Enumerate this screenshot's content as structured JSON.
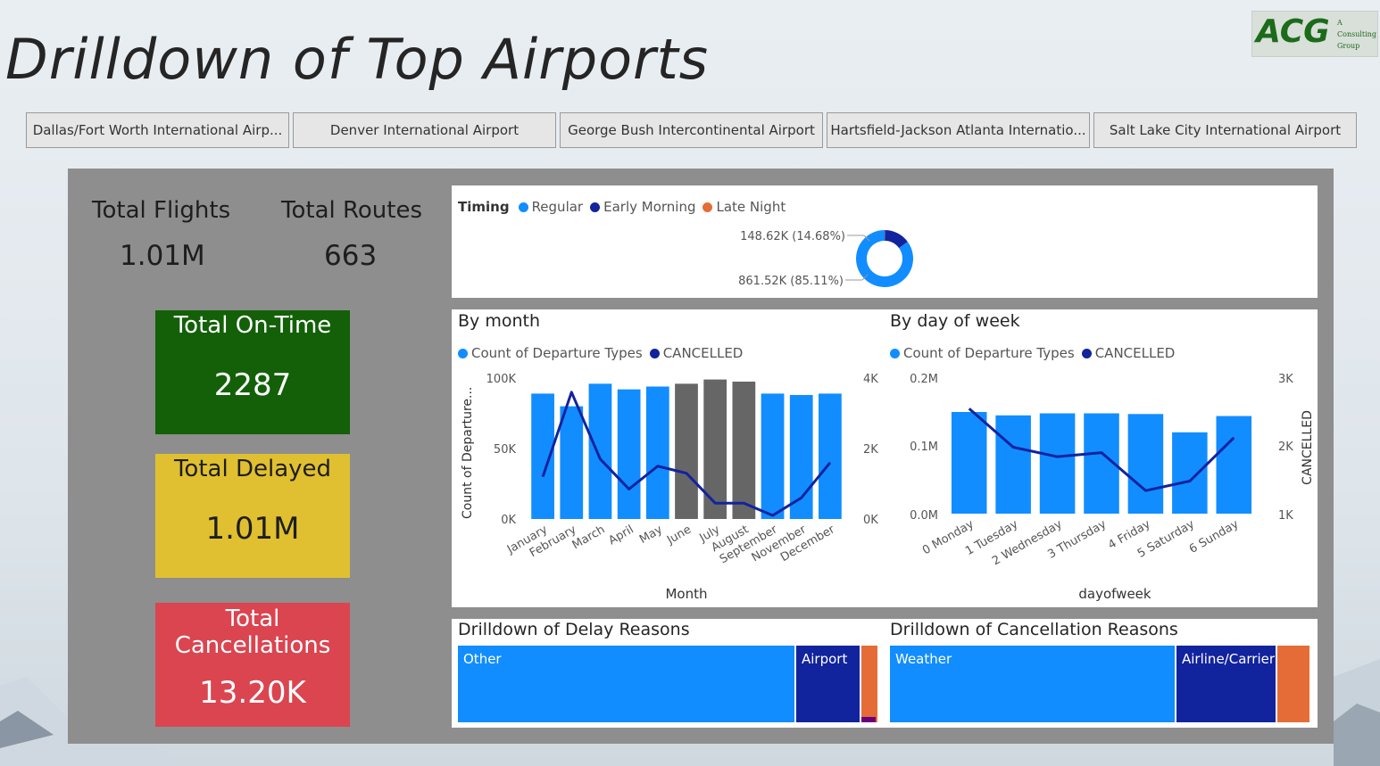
{
  "page": {
    "title": "Drilldown of Top Airports"
  },
  "logo": {
    "mark": "ACG",
    "sub_line1": "A",
    "sub_line2": "Consulting",
    "sub_line3": "Group"
  },
  "slicers": [
    "Dallas/Fort Worth International Airp...",
    "Denver International Airport",
    "George Bush Intercontinental Airport",
    "Hartsfield-Jackson Atlanta Internatio...",
    "Salt Lake City International Airport"
  ],
  "kpis": {
    "total_flights_label": "Total Flights",
    "total_flights_value": "1.01M",
    "total_routes_label": "Total Routes",
    "total_routes_value": "663"
  },
  "cards": {
    "ontime_label": "Total On-Time",
    "ontime_value": "2287",
    "ontime_color": "#136008",
    "delayed_label": "Total Delayed",
    "delayed_value": "1.01M",
    "delayed_color": "#e0c030",
    "cancel_label_1": "Total",
    "cancel_label_2": "Cancellations",
    "cancel_value": "13.20K",
    "cancel_color": "#da4550"
  },
  "colors": {
    "regular": "#118DFF",
    "early": "#12239E",
    "late": "#E66C37",
    "grey_bar": "#666666",
    "line": "#12239E"
  },
  "timing_chart": {
    "legend_title": "Timing",
    "legend": [
      "Regular",
      "Early Morning",
      "Late Night"
    ],
    "label_small": "148.62K (14.68%)",
    "label_large": "861.52K (85.11%)"
  },
  "month_chart": {
    "title": "By month",
    "legend": [
      "Count of Departure Types",
      "CANCELLED"
    ],
    "xlabel": "Month",
    "ylabel_left": "Count of Departure...",
    "left_ticks": [
      "100K",
      "50K",
      "0K"
    ],
    "right_ticks": [
      "4K",
      "2K",
      "0K"
    ]
  },
  "dow_chart": {
    "title": "By day of week",
    "legend": [
      "Count of Departure Types",
      "CANCELLED"
    ],
    "xlabel": "dayofweek",
    "ylabel_right": "CANCELLED",
    "left_ticks": [
      "0.2M",
      "0.1M",
      "0.0M"
    ],
    "right_ticks": [
      "3K",
      "2K",
      "1K"
    ]
  },
  "delay_reasons": {
    "title": "Drilldown of Delay Reasons",
    "labels": [
      "Other",
      "Airport"
    ]
  },
  "cancel_reasons": {
    "title": "Drilldown of Cancellation Reasons",
    "labels": [
      "Weather",
      "Airline/Carrier"
    ]
  },
  "chart_data": [
    {
      "type": "pie",
      "title": "Timing",
      "slices": [
        {
          "name": "Regular",
          "value": 861520,
          "percent": 85.11
        },
        {
          "name": "Early Morning",
          "value": 148620,
          "percent": 14.68
        },
        {
          "name": "Late Night",
          "value": 2130,
          "percent": 0.21
        }
      ]
    },
    {
      "type": "bar",
      "title": "By month",
      "categories": [
        "January",
        "February",
        "March",
        "April",
        "May",
        "June",
        "July",
        "August",
        "September",
        "November",
        "December"
      ],
      "highlighted": [
        true,
        true,
        true,
        true,
        true,
        false,
        false,
        false,
        true,
        true,
        true
      ],
      "series": [
        {
          "name": "Count of Departure Types",
          "axis": "left",
          "values": [
            89000,
            80000,
            96000,
            92000,
            94000,
            96000,
            99000,
            97500,
            89000,
            88000,
            89000
          ]
        },
        {
          "name": "CANCELLED",
          "axis": "right",
          "values": [
            1200,
            3600,
            1700,
            850,
            1500,
            1300,
            450,
            450,
            100,
            600,
            1600
          ]
        }
      ],
      "xlabel": "Month",
      "ylabel": "Count of Departure...",
      "ylim": [
        0,
        100000
      ],
      "y2lim": [
        0,
        4000
      ]
    },
    {
      "type": "bar",
      "title": "By day of week",
      "categories": [
        "0 Monday",
        "1 Tuesday",
        "2 Wednesday",
        "3 Thursday",
        "4 Friday",
        "5 Saturday",
        "6 Sunday"
      ],
      "series": [
        {
          "name": "Count of Departure Types",
          "axis": "left",
          "values": [
            150000,
            145000,
            148000,
            148000,
            147000,
            120000,
            144000
          ]
        },
        {
          "name": "CANCELLED",
          "axis": "right",
          "values": [
            2550,
            1980,
            1840,
            1900,
            1340,
            1480,
            2120
          ]
        }
      ],
      "xlabel": "dayofweek",
      "ylabel": "CANCELLED",
      "ylim": [
        0,
        200000
      ],
      "y2lim": [
        1000,
        3000
      ]
    },
    {
      "type": "bar",
      "title": "Drilldown of Delay Reasons",
      "categories": [
        "Other",
        "Airport",
        "Unlabeled 3",
        "Unlabeled 4"
      ],
      "values": [
        79.5,
        15.2,
        4.2,
        1.1
      ]
    },
    {
      "type": "bar",
      "title": "Drilldown of Cancellation Reasons",
      "categories": [
        "Weather",
        "Airline/Carrier",
        "Unlabeled 3"
      ],
      "values": [
        68,
        24,
        8
      ]
    }
  ]
}
